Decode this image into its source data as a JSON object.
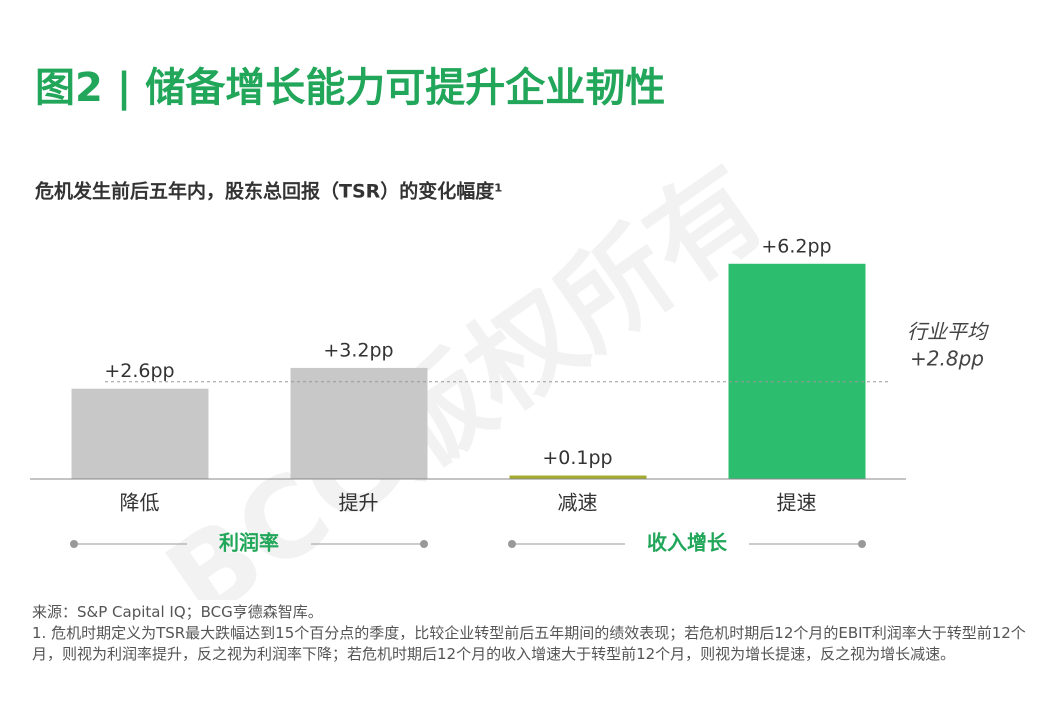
{
  "chart_data": {
    "type": "bar",
    "title": "图2 | 储备增长能力可提升企业韧性",
    "subtitle": "危机发生前后五年内，股东总回报（TSR）的变化幅度¹",
    "categories": [
      "降低",
      "提升",
      "减速",
      "提速"
    ],
    "values": [
      2.6,
      3.2,
      0.1,
      6.2
    ],
    "value_labels": [
      "+2.6pp",
      "+3.2pp",
      "+0.1pp",
      "+6.2pp"
    ],
    "colors": [
      "#c8c8c8",
      "#c8c8c8",
      "#a4ab2e",
      "#2dbd6e"
    ],
    "ylim": [
      0,
      7
    ],
    "reference_line": {
      "value": 2.8,
      "label": "行业平均",
      "value_label": "+2.8pp"
    },
    "group_labels": [
      "利润率",
      "收入增长"
    ],
    "watermark": "BCG版权所有",
    "source": "来源：S&P Capital IQ；BCG亨德森智库。",
    "note": "1. 危机时期定义为TSR最大跌幅达到15个百分点的季度，比较企业转型前后五年期间的绩效表现；若危机时期后12个月的EBIT利润率大于转型前12个月，则视为利润率提升，反之视为利润率下降；若危机时期后12个月的收入增速大于转型前12个月，则视为增长提速，反之视为增长减速。"
  }
}
